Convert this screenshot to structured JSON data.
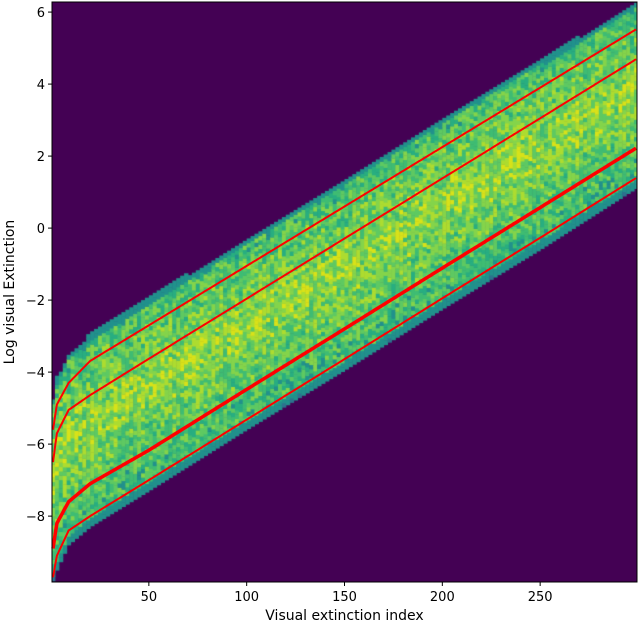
{
  "chart_data": {
    "type": "heatmap",
    "title": "",
    "xlabel": "Visual extinction index",
    "ylabel": "Log visual Extinction",
    "xlim": [
      0.5,
      299.5
    ],
    "ylim": [
      -9.83,
      6.28
    ],
    "xticks": [
      50,
      100,
      150,
      200,
      250
    ],
    "yticks": [
      -8,
      -6,
      -4,
      -2,
      0,
      2,
      4,
      6
    ],
    "grid": false,
    "colormap": "viridis",
    "colors": {
      "background": "#440154",
      "lines": "#ff0000"
    },
    "band": {
      "x": [
        1,
        3,
        9,
        20,
        50,
        100,
        150,
        200,
        250,
        299
      ],
      "upper": [
        -4.8,
        -4.2,
        -3.6,
        -3.0,
        -2.0,
        -0.35,
        1.3,
        2.95,
        4.6,
        6.2
      ],
      "lower": [
        -9.8,
        -9.5,
        -8.8,
        -8.3,
        -7.3,
        -5.6,
        -3.95,
        -2.25,
        -0.6,
        1.1
      ]
    },
    "lines": [
      {
        "x": [
          1,
          3,
          9,
          20,
          50,
          100,
          150,
          200,
          250,
          299
        ],
        "y": [
          -5.6,
          -4.9,
          -4.3,
          -3.69,
          -2.7,
          -1.05,
          0.6,
          2.25,
          3.9,
          5.52
        ],
        "width": 2
      },
      {
        "x": [
          1,
          3,
          9,
          20,
          50,
          100,
          150,
          200,
          250,
          299
        ],
        "y": [
          -6.5,
          -5.7,
          -5.05,
          -4.64,
          -3.63,
          -1.96,
          -0.29,
          1.38,
          3.05,
          4.69
        ],
        "width": 2
      },
      {
        "x": [
          1,
          3,
          9,
          20,
          50,
          100,
          150,
          200,
          250,
          299
        ],
        "y": [
          -8.9,
          -8.2,
          -7.6,
          -7.1,
          -6.17,
          -4.48,
          -2.8,
          -1.11,
          0.57,
          2.22
        ],
        "width": 3.5
      },
      {
        "x": [
          1,
          3,
          9,
          20,
          50,
          100,
          150,
          200,
          250,
          299
        ],
        "y": [
          -9.7,
          -9.1,
          -8.4,
          -8.0,
          -7.0,
          -5.32,
          -3.64,
          -1.95,
          -0.27,
          1.39
        ],
        "width": 2
      }
    ]
  }
}
